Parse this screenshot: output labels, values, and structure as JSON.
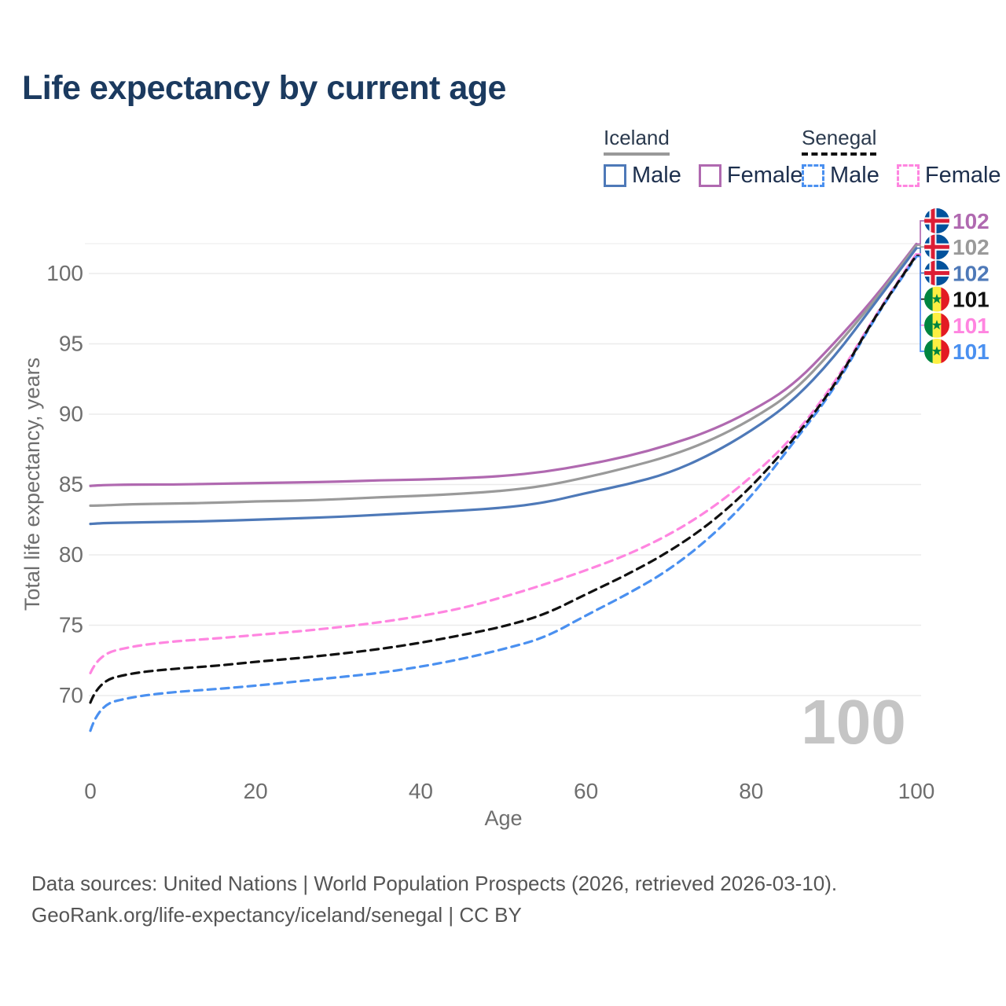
{
  "header": {
    "title": "Life expectancy by current age"
  },
  "legend": {
    "groups": [
      {
        "label": "Iceland",
        "line_style": "solid",
        "underline_color": "#999999",
        "items": [
          {
            "label": "Male",
            "color": "#4e79b8",
            "dash": false
          },
          {
            "label": "Female",
            "color": "#b069b0",
            "dash": false
          }
        ]
      },
      {
        "label": "Senegal",
        "line_style": "dashed",
        "underline_color": "#111111",
        "items": [
          {
            "label": "Male",
            "color": "#4a90f0",
            "dash": true
          },
          {
            "label": "Female",
            "color": "#ff85e0",
            "dash": true
          }
        ]
      }
    ]
  },
  "chart_data": {
    "type": "line",
    "title": "Life expectancy by current age",
    "xlabel": "Age",
    "ylabel": "Total life expectancy, years",
    "xlim": [
      0,
      100
    ],
    "ylim": [
      66.5,
      103
    ],
    "xticks": [
      0,
      20,
      40,
      60,
      80,
      100
    ],
    "yticks": [
      70,
      75,
      80,
      85,
      90,
      95,
      100
    ],
    "grid": "horizontal",
    "gridline_color": "#ebebeb",
    "tick_color": "#6e6e6e",
    "legend_position": "top-right",
    "watermark": "100",
    "watermark_color": "#c5c5c5",
    "x": [
      0,
      1,
      5,
      10,
      15,
      20,
      25,
      30,
      35,
      40,
      45,
      50,
      55,
      60,
      65,
      70,
      75,
      80,
      85,
      90,
      95,
      100
    ],
    "series": [
      {
        "name": "Iceland Female",
        "country": "Iceland",
        "sex": "Female",
        "flag": "iceland",
        "color": "#b069b0",
        "dash": false,
        "end_label": "102",
        "values": [
          84.9,
          84.95,
          85.0,
          85.0,
          85.05,
          85.1,
          85.15,
          85.2,
          85.3,
          85.35,
          85.45,
          85.6,
          85.9,
          86.4,
          87.0,
          87.8,
          88.8,
          90.2,
          92.0,
          95.0,
          98.3,
          102.1
        ]
      },
      {
        "name": "Iceland Both sexes",
        "country": "Iceland",
        "sex": "Both",
        "flag": "iceland",
        "color": "#9a9a9a",
        "dash": false,
        "end_label": "102",
        "values": [
          83.5,
          83.5,
          83.6,
          83.65,
          83.7,
          83.8,
          83.85,
          83.95,
          84.1,
          84.2,
          84.35,
          84.55,
          84.9,
          85.5,
          86.2,
          87.0,
          88.1,
          89.6,
          91.5,
          94.6,
          98.1,
          102.0
        ]
      },
      {
        "name": "Iceland Male",
        "country": "Iceland",
        "sex": "Male",
        "flag": "iceland",
        "color": "#4e79b8",
        "dash": false,
        "end_label": "102",
        "values": [
          82.2,
          82.25,
          82.3,
          82.35,
          82.4,
          82.5,
          82.6,
          82.7,
          82.85,
          83.0,
          83.15,
          83.35,
          83.7,
          84.4,
          85.0,
          85.8,
          87.1,
          88.8,
          90.9,
          94.0,
          97.9,
          101.8
        ]
      },
      {
        "name": "Senegal Both sexes",
        "country": "Senegal",
        "sex": "Both",
        "flag": "senegal",
        "color": "#111111",
        "dash": true,
        "end_label": "101",
        "values": [
          69.5,
          71.0,
          71.6,
          71.9,
          72.1,
          72.4,
          72.65,
          72.95,
          73.3,
          73.75,
          74.3,
          74.9,
          75.75,
          77.2,
          78.6,
          80.2,
          82.2,
          84.8,
          88.1,
          91.9,
          96.95,
          101.3
        ]
      },
      {
        "name": "Senegal Female",
        "country": "Senegal",
        "sex": "Female",
        "flag": "senegal",
        "color": "#ff85e0",
        "dash": true,
        "end_label": "101",
        "values": [
          71.6,
          72.9,
          73.5,
          73.85,
          74.05,
          74.3,
          74.55,
          74.85,
          75.2,
          75.65,
          76.2,
          77.0,
          77.9,
          78.9,
          80.0,
          81.4,
          83.2,
          85.5,
          88.3,
          92.1,
          97.0,
          101.4
        ]
      },
      {
        "name": "Senegal Male",
        "country": "Senegal",
        "sex": "Male",
        "flag": "senegal",
        "color": "#4a90f0",
        "dash": true,
        "end_label": "101",
        "values": [
          67.5,
          69.3,
          69.9,
          70.25,
          70.45,
          70.7,
          71.0,
          71.3,
          71.6,
          72.05,
          72.6,
          73.3,
          74.1,
          75.7,
          77.2,
          78.9,
          81.2,
          84.1,
          87.9,
          91.7,
          96.9,
          101.2
        ]
      }
    ],
    "flag_colors": {
      "iceland": {
        "blue": "#02529C",
        "white": "#ffffff",
        "red": "#DC1E35"
      },
      "senegal": {
        "green": "#00853F",
        "yellow": "#FDEF42",
        "red": "#E31B23"
      }
    }
  },
  "footer": {
    "line1": "Data sources: United Nations | World Population Prospects (2026, retrieved 2026-03-10).",
    "line2": "GeoRank.org/life-expectancy/iceland/senegal | CC BY"
  }
}
